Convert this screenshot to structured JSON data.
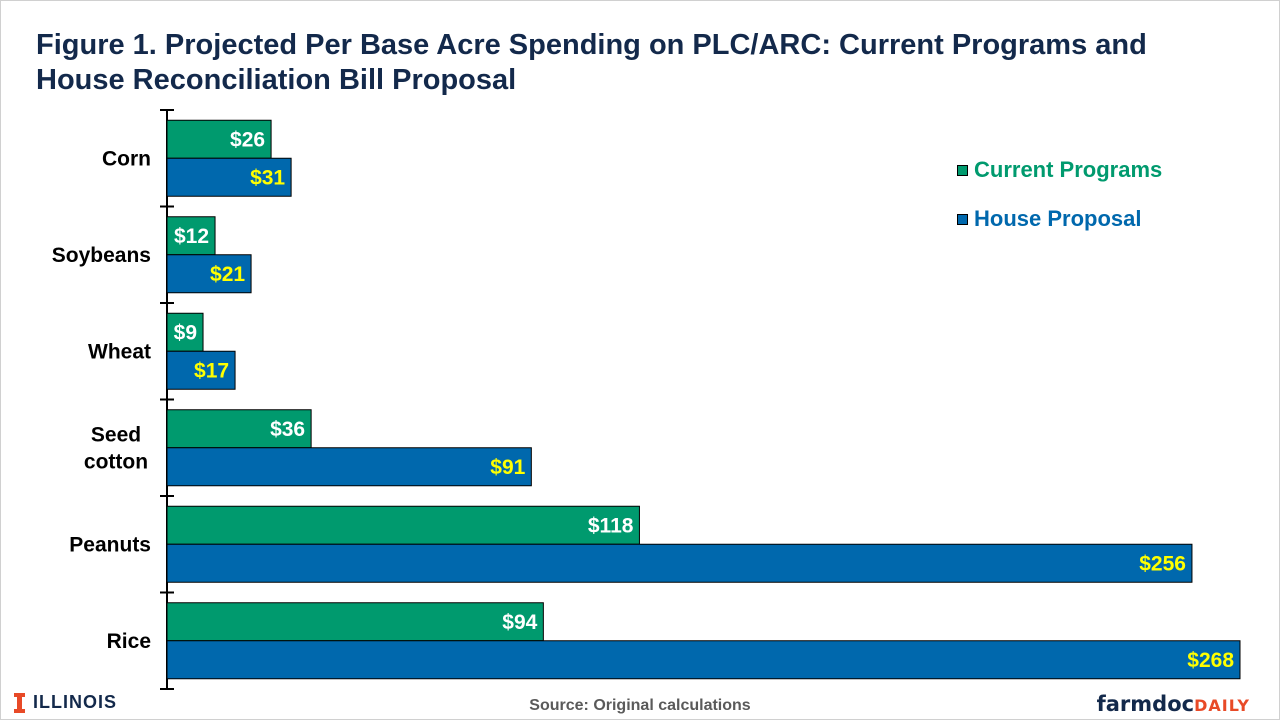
{
  "title": "Figure 1. Projected Per Base Acre Spending on PLC/ARC:  Current Programs and House Reconciliation Bill Proposal",
  "source": "Source: Original calculations",
  "logos": {
    "illinois": "ILLINOIS",
    "farmdoc_farm": "farm",
    "farmdoc_doc": "doc",
    "farmdoc_daily": "DAILY"
  },
  "colors": {
    "current": "#009a6e",
    "house": "#0068ad",
    "title": "#13294b",
    "current_label": "#ffffff",
    "house_label": "#ffff00"
  },
  "chart_data": {
    "type": "bar",
    "orientation": "horizontal",
    "title": "Figure 1. Projected Per Base Acre Spending on PLC/ARC:  Current Programs and House Reconciliation Bill Proposal",
    "categories": [
      "Corn",
      "Soybeans",
      "Wheat",
      "Seed\ncotton",
      "Peanuts",
      "Rice"
    ],
    "series": [
      {
        "name": "Current Programs",
        "values": [
          26,
          12,
          9,
          36,
          118,
          94
        ],
        "labels": [
          "$26",
          "$12",
          "$9",
          "$36",
          "$118",
          "$94"
        ]
      },
      {
        "name": "House Proposal",
        "values": [
          31,
          21,
          17,
          91,
          256,
          268
        ],
        "labels": [
          "$31",
          "$21",
          "$17",
          "$91",
          "$256",
          "$268"
        ]
      }
    ],
    "xlim": [
      0,
      270
    ],
    "grid": false,
    "legend_position": "top-right"
  }
}
